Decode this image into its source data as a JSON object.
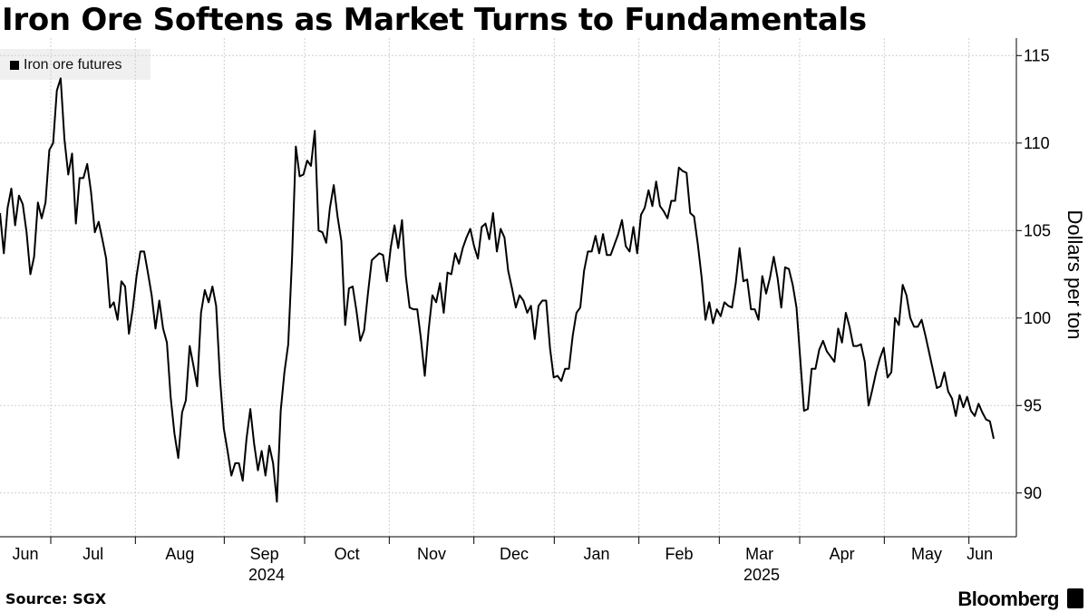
{
  "title": "Iron Ore Softens as Market Turns to Fundamentals",
  "source": "Source: SGX",
  "brand": "Bloomberg",
  "chart_data": {
    "type": "line",
    "ylabel": "Dollars per ton",
    "ylim": [
      87.5,
      116
    ],
    "yticks": [
      90,
      95,
      100,
      105,
      110,
      115
    ],
    "xlim": [
      0,
      240
    ],
    "month_ticks": [
      {
        "label": "Jun",
        "pos": 0,
        "tick": false
      },
      {
        "label": "Jul",
        "pos": 12
      },
      {
        "label": "Aug",
        "pos": 32
      },
      {
        "label": "Sep",
        "pos": 53
      },
      {
        "label": "Oct",
        "pos": 72
      },
      {
        "label": "Nov",
        "pos": 92
      },
      {
        "label": "Dec",
        "pos": 112
      },
      {
        "label": "Jan",
        "pos": 131
      },
      {
        "label": "Feb",
        "pos": 151
      },
      {
        "label": "Mar",
        "pos": 170
      },
      {
        "label": "Apr",
        "pos": 189
      },
      {
        "label": "May",
        "pos": 209
      },
      {
        "label": "Jun",
        "pos": 229
      }
    ],
    "years": [
      {
        "label": "2024",
        "pos": 63
      },
      {
        "label": "2025",
        "pos": 180
      }
    ],
    "series": [
      {
        "name": "Iron ore futures",
        "color": "#000000",
        "values": [
          106.0,
          103.7,
          106.3,
          107.4,
          105.3,
          107.0,
          106.5,
          104.9,
          102.5,
          103.5,
          106.6,
          105.7,
          106.6,
          109.6,
          110.0,
          113.0,
          113.7,
          110.2,
          108.2,
          109.4,
          105.4,
          108.0,
          108.0,
          108.8,
          107.2,
          104.9,
          105.5,
          104.5,
          103.4,
          100.6,
          100.9,
          99.9,
          102.1,
          101.8,
          99.1,
          100.5,
          102.4,
          103.8,
          103.8,
          102.6,
          101.3,
          99.4,
          101.0,
          99.4,
          98.6,
          95.5,
          93.4,
          92.0,
          94.6,
          95.3,
          98.4,
          97.3,
          96.1,
          100.3,
          101.6,
          100.9,
          101.8,
          100.7,
          96.6,
          93.7,
          92.4,
          91.0,
          91.7,
          91.7,
          90.7,
          93.1,
          94.8,
          92.8,
          91.3,
          92.4,
          91.0,
          92.7,
          91.7,
          89.5,
          94.7,
          96.9,
          98.5,
          103.4,
          109.8,
          108.1,
          108.2,
          109.0,
          108.7,
          110.7,
          105.0,
          104.9,
          104.3,
          106.3,
          107.6,
          105.8,
          104.4,
          99.6,
          101.7,
          101.8,
          100.4,
          98.7,
          99.3,
          101.4,
          103.3,
          103.5,
          103.7,
          103.6,
          102.1,
          104.0,
          105.3,
          104.0,
          105.6,
          102.4,
          100.6,
          100.5,
          100.5,
          98.8,
          96.7,
          99.3,
          101.3,
          100.9,
          102.0,
          100.3,
          102.6,
          102.5,
          103.7,
          103.1,
          104.0,
          104.6,
          105.1,
          104.1,
          103.4,
          105.2,
          105.4,
          104.5,
          106.0,
          103.8,
          105.1,
          104.6,
          102.7,
          101.7,
          100.6,
          101.3,
          101.0,
          100.3,
          100.7,
          98.8,
          100.7,
          101.0,
          101.0,
          98.3,
          96.6,
          96.7,
          96.4,
          97.1,
          97.1,
          99.0,
          100.3,
          100.6,
          102.7,
          103.8,
          103.8,
          104.7,
          103.7,
          104.8,
          103.6,
          103.6,
          104.2,
          104.8,
          105.6,
          104.1,
          103.8,
          105.2,
          103.7,
          105.9,
          106.3,
          107.3,
          106.4,
          107.8,
          106.4,
          106.1,
          105.7,
          106.7,
          106.7,
          108.6,
          108.4,
          108.3,
          106.0,
          105.8,
          104.2,
          102.3,
          99.9,
          100.9,
          99.7,
          100.5,
          100.1,
          100.9,
          100.7,
          100.6,
          102.0,
          104.0,
          102.1,
          102.2,
          100.5,
          100.5,
          99.9,
          102.4,
          101.4,
          102.3,
          103.5,
          102.3,
          100.6,
          102.9,
          102.8,
          101.9,
          100.6,
          97.6,
          94.7,
          94.8,
          97.1,
          97.1,
          98.2,
          98.7,
          98.1,
          97.8,
          97.5,
          99.4,
          98.6,
          100.3,
          99.5,
          98.4,
          98.4,
          98.5,
          97.5,
          95.0,
          95.9,
          96.9,
          97.7,
          98.3,
          96.6,
          96.9,
          100.0,
          99.6,
          101.9,
          101.3,
          100.0,
          99.5,
          99.5,
          99.9,
          99.0,
          98.0,
          97.0,
          96.0,
          96.1,
          96.9,
          95.8,
          95.4,
          94.4,
          95.6,
          94.9,
          95.5,
          94.7,
          94.4,
          95.1,
          94.6,
          94.2,
          94.1,
          93.1
        ]
      }
    ]
  }
}
